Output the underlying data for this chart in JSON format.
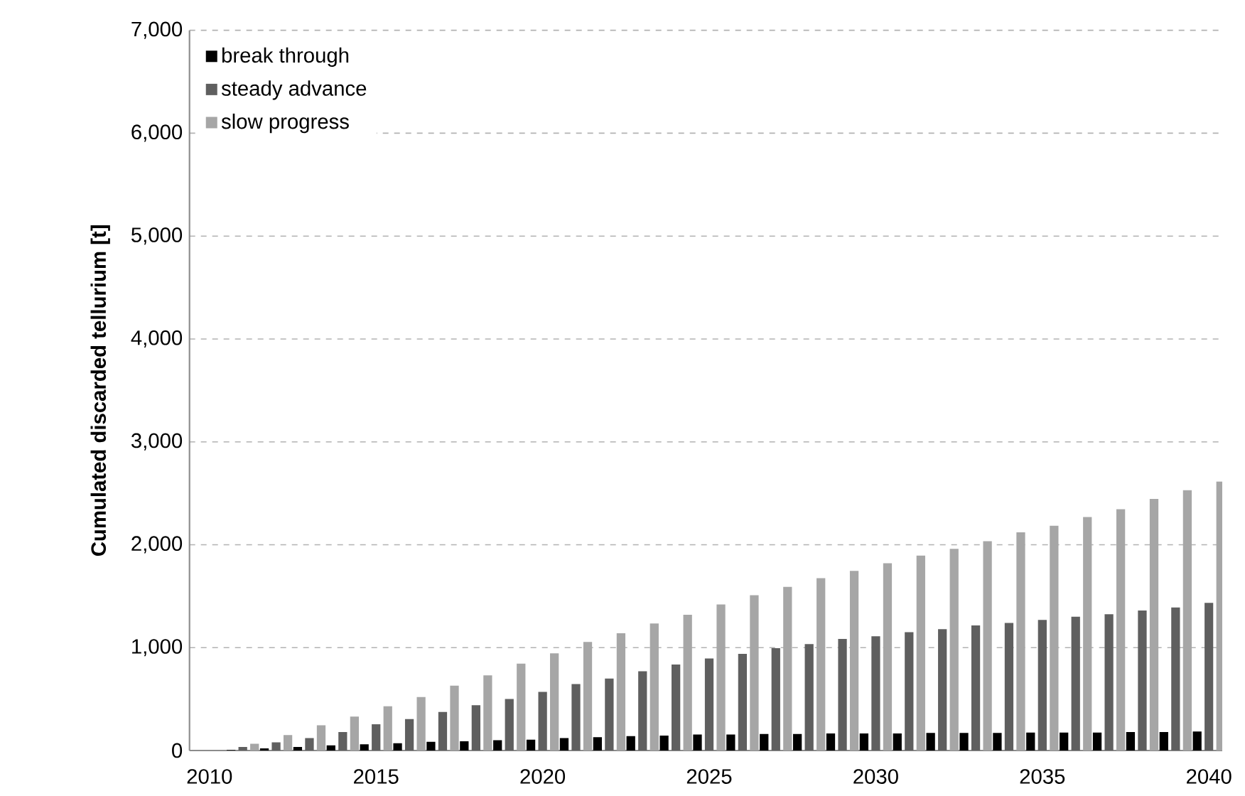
{
  "chart_data": {
    "type": "bar",
    "ylabel": "Cumulated discarded tellurium [t]",
    "categories": [
      "2010",
      null,
      null,
      null,
      null,
      "2015",
      null,
      null,
      null,
      null,
      "2020",
      null,
      null,
      null,
      null,
      "2025",
      null,
      null,
      null,
      null,
      "2030",
      null,
      null,
      null,
      null,
      "2035",
      null,
      null,
      null,
      null,
      "2040"
    ],
    "series": [
      {
        "name": "break through",
        "color": "#000000",
        "values": [
          0,
          5,
          20,
          35,
          50,
          60,
          70,
          85,
          90,
          100,
          105,
          120,
          130,
          140,
          145,
          155,
          155,
          160,
          160,
          165,
          165,
          165,
          170,
          170,
          170,
          175,
          175,
          175,
          180,
          180,
          185
        ]
      },
      {
        "name": "steady advance",
        "color": "#5f5f5f",
        "values": [
          0,
          35,
          80,
          120,
          180,
          255,
          305,
          375,
          440,
          500,
          570,
          645,
          700,
          770,
          835,
          895,
          940,
          995,
          1035,
          1085,
          1110,
          1150,
          1180,
          1215,
          1240,
          1270,
          1300,
          1325,
          1360,
          1390,
          1435
        ]
      },
      {
        "name": "slow progress",
        "color": "#a6a6a6",
        "values": [
          0,
          65,
          150,
          245,
          330,
          430,
          520,
          630,
          730,
          845,
          945,
          1055,
          1140,
          1235,
          1320,
          1420,
          1510,
          1590,
          1675,
          1745,
          1820,
          1895,
          1960,
          2035,
          2120,
          2185,
          2270,
          2345,
          2445,
          2530,
          2615
        ]
      }
    ],
    "ylim": [
      0,
      7000
    ],
    "yticks": [
      {
        "value": 0,
        "label": "0"
      },
      {
        "value": 1000,
        "label": "1,000"
      },
      {
        "value": 2000,
        "label": "2,000"
      },
      {
        "value": 3000,
        "label": "3,000"
      },
      {
        "value": 4000,
        "label": "4,000"
      },
      {
        "value": 5000,
        "label": "5,000"
      },
      {
        "value": 6000,
        "label": "6,000"
      },
      {
        "value": 7000,
        "label": "7,000"
      }
    ],
    "grid": "y",
    "legend": "top left"
  }
}
